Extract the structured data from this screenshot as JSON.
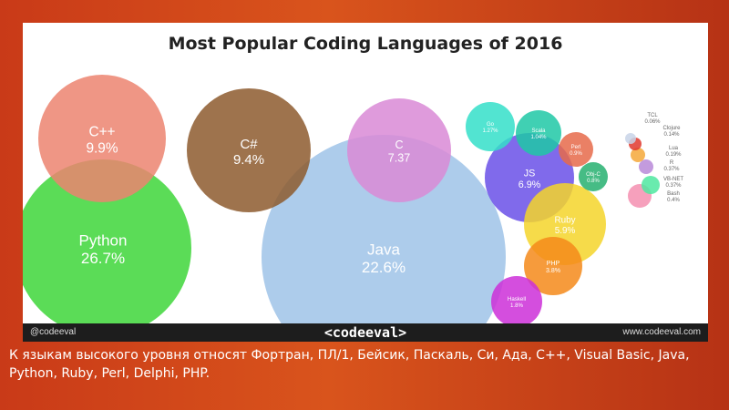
{
  "chart_data": {
    "type": "bubble",
    "title": "Most Popular Coding Languages of 2016",
    "series": [
      {
        "name": "Python",
        "label": "Python",
        "value_text": "26.7%",
        "value": 26.7,
        "color": "#3ed63a"
      },
      {
        "name": "Java",
        "label": "Java",
        "value_text": "22.6%",
        "value": 22.6,
        "color": "#9fc3e8"
      },
      {
        "name": "C++",
        "label": "C++",
        "value_text": "9.9%",
        "value": 9.9,
        "color": "#ec8470"
      },
      {
        "name": "C#",
        "label": "C#",
        "value_text": "9.4%",
        "value": 9.4,
        "color": "#8d5a2e"
      },
      {
        "name": "C",
        "label": "C",
        "value_text": "7.37",
        "value": 7.37,
        "color": "#d98ad6"
      },
      {
        "name": "JS",
        "label": "JS",
        "value_text": "6.9%",
        "value": 6.9,
        "color": "#6a50e8"
      },
      {
        "name": "Ruby",
        "label": "Ruby",
        "value_text": "5.9%",
        "value": 5.9,
        "color": "#f4d52a"
      },
      {
        "name": "PHP",
        "label": "PHP",
        "value_text": "3.8%",
        "value": 3.8,
        "color": "#f58a1a"
      },
      {
        "name": "Haskell",
        "label": "Haskell",
        "value_text": "1.8%",
        "value": 1.8,
        "color": "#cc2fd8"
      },
      {
        "name": "Go",
        "label": "Go",
        "value_text": "1.27%",
        "value": 1.27,
        "color": "#34dfc9"
      },
      {
        "name": "Scala",
        "label": "Scala",
        "value_text": "1.04%",
        "value": 1.04,
        "color": "#1ec8a6"
      },
      {
        "name": "Perl",
        "label": "Perl",
        "value_text": "0.9%",
        "value": 0.9,
        "color": "#e66a4a"
      },
      {
        "name": "Obj-C",
        "label": "Obj-C",
        "value_text": "0.8%",
        "value": 0.8,
        "color": "#26b070"
      },
      {
        "name": "Bash",
        "label": "Bash",
        "value_text": "0.4%",
        "value": 0.4,
        "color": "#f58fb0"
      },
      {
        "name": "VB-NET",
        "label": "VB-NET",
        "value_text": "0.37%",
        "value": 0.37,
        "color": "#4fe8a0"
      },
      {
        "name": "R",
        "label": "R",
        "value_text": "0.37%",
        "value": 0.37,
        "color": "#b98ad8"
      },
      {
        "name": "Lua",
        "label": "Lua",
        "value_text": "0.19%",
        "value": 0.19,
        "color": "#f4a83a"
      },
      {
        "name": "Clojure",
        "label": "Clojure",
        "value_text": "0.14%",
        "value": 0.14,
        "color": "#e0382e"
      },
      {
        "name": "TCL",
        "label": "TCL",
        "value_text": "0.06%",
        "value": 0.06,
        "color": "#c8d4e8"
      }
    ]
  },
  "footer": {
    "handle": "@codeeval",
    "brand": "<codeeval>",
    "url": "www.codeeval.com"
  },
  "caption": "К языкам высокого уровня относят Фортран, ПЛ/1, Бейсик, Паскаль, Си, Ада, C++, Visual Basic, Java, Python, Ruby, Perl, Delphi, PHP."
}
